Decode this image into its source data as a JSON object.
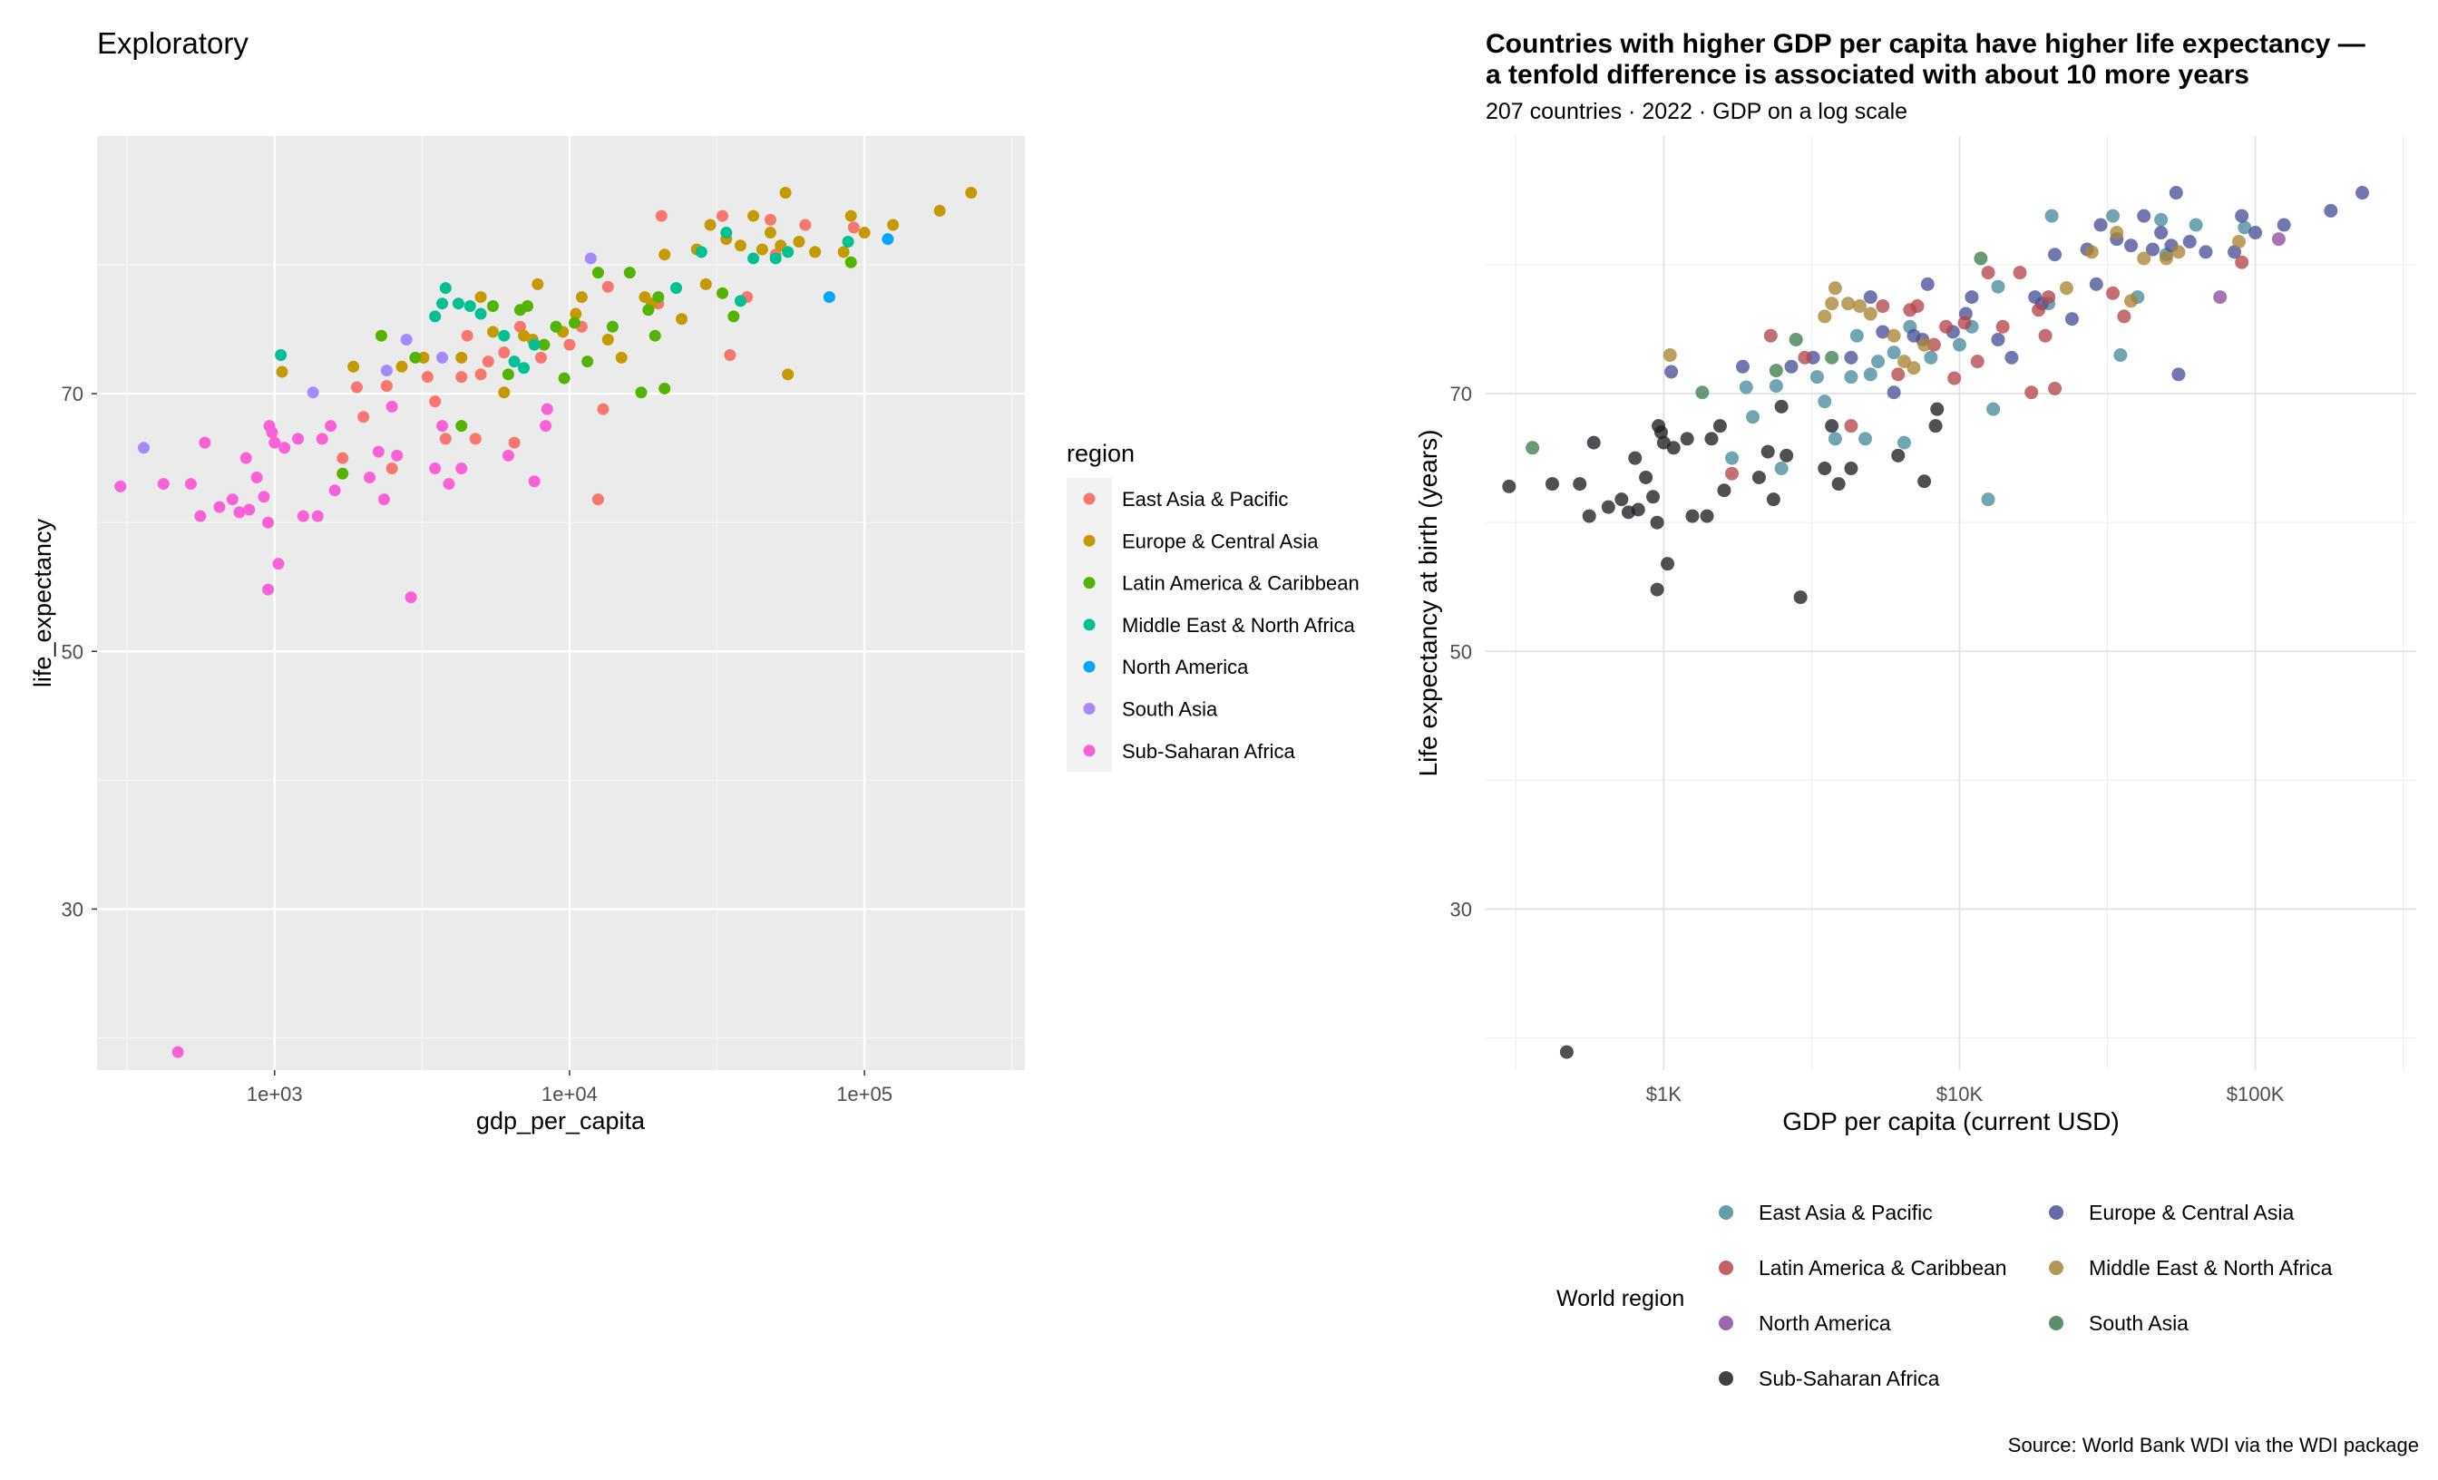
{
  "chart_data": [
    {
      "type": "scatter",
      "title": "Exploratory",
      "subtitle": "",
      "xlabel": "gdp_per_capita",
      "ylabel": "life_expectancy",
      "x_scale": "log10",
      "xlim": [
        250,
        350000
      ],
      "ylim": [
        17.5,
        90
      ],
      "x_ticks": [
        {
          "value": 1000,
          "label": "1e+03"
        },
        {
          "value": 10000,
          "label": "1e+04"
        },
        {
          "value": 100000,
          "label": "1e+05"
        }
      ],
      "y_ticks": [
        {
          "value": 30,
          "label": "30"
        },
        {
          "value": 50,
          "label": "50"
        },
        {
          "value": 70,
          "label": "70"
        }
      ],
      "grid": true,
      "legend_title": "region",
      "legend_position": "right",
      "series": [
        {
          "name": "East Asia & Pacific",
          "color": "#F8766D"
        },
        {
          "name": "Europe & Central Asia",
          "color": "#C49A00"
        },
        {
          "name": "Latin America & Caribbean",
          "color": "#53B400"
        },
        {
          "name": "Middle East & North Africa",
          "color": "#00C094"
        },
        {
          "name": "North America",
          "color": "#00A6FF"
        },
        {
          "name": "South Asia",
          "color": "#A58AFF"
        },
        {
          "name": "Sub-Saharan Africa",
          "color": "#FB61D7"
        }
      ]
    },
    {
      "type": "scatter",
      "title": "Countries with higher GDP per capita have higher life expectancy —\na tenfold difference is associated with about 10 more years",
      "subtitle": "207 countries · 2022 · GDP on a log scale",
      "xlabel": "GDP per capita (current USD)",
      "ylabel": "Life expectancy at birth (years)",
      "caption": "Source: World Bank WDI via the WDI package",
      "x_scale": "log10",
      "xlim": [
        250,
        350000
      ],
      "ylim": [
        17.5,
        90
      ],
      "x_ticks": [
        {
          "value": 1000,
          "label": "$1K"
        },
        {
          "value": 10000,
          "label": "$10K"
        },
        {
          "value": 100000,
          "label": "$100K"
        }
      ],
      "y_ticks": [
        {
          "value": 30,
          "label": "30"
        },
        {
          "value": 50,
          "label": "50"
        },
        {
          "value": 70,
          "label": "70"
        }
      ],
      "grid": true,
      "legend_title": "World region",
      "legend_position": "bottom",
      "series": [
        {
          "name": "East Asia & Pacific",
          "color": "#4A8C9C"
        },
        {
          "name": "Europe & Central Asia",
          "color": "#4B5199"
        },
        {
          "name": "Latin America & Caribbean",
          "color": "#B5474D"
        },
        {
          "name": "Middle East & North Africa",
          "color": "#A88536"
        },
        {
          "name": "North America",
          "color": "#8E4C9C"
        },
        {
          "name": "South Asia",
          "color": "#3D7D4E"
        },
        {
          "name": "Sub-Saharan Africa",
          "color": "#1F1F24"
        }
      ]
    }
  ],
  "points": [
    {
      "region": "East Asia & Pacific",
      "x": 1700,
      "y": 65.0
    },
    {
      "region": "East Asia & Pacific",
      "x": 1900,
      "y": 70.5
    },
    {
      "region": "East Asia & Pacific",
      "x": 2000,
      "y": 68.2
    },
    {
      "region": "East Asia & Pacific",
      "x": 2400,
      "y": 70.6
    },
    {
      "region": "East Asia & Pacific",
      "x": 2500,
      "y": 64.2
    },
    {
      "region": "East Asia & Pacific",
      "x": 3300,
      "y": 71.3
    },
    {
      "region": "East Asia & Pacific",
      "x": 3500,
      "y": 69.4
    },
    {
      "region": "East Asia & Pacific",
      "x": 3800,
      "y": 66.5
    },
    {
      "region": "East Asia & Pacific",
      "x": 4300,
      "y": 71.3
    },
    {
      "region": "East Asia & Pacific",
      "x": 4500,
      "y": 74.5
    },
    {
      "region": "East Asia & Pacific",
      "x": 4800,
      "y": 66.5
    },
    {
      "region": "East Asia & Pacific",
      "x": 5000,
      "y": 71.5
    },
    {
      "region": "East Asia & Pacific",
      "x": 5300,
      "y": 72.5
    },
    {
      "region": "East Asia & Pacific",
      "x": 6000,
      "y": 73.2
    },
    {
      "region": "East Asia & Pacific",
      "x": 6500,
      "y": 66.2
    },
    {
      "region": "East Asia & Pacific",
      "x": 6800,
      "y": 75.2
    },
    {
      "region": "East Asia & Pacific",
      "x": 8000,
      "y": 72.8
    },
    {
      "region": "East Asia & Pacific",
      "x": 10000,
      "y": 73.8
    },
    {
      "region": "East Asia & Pacific",
      "x": 11000,
      "y": 75.2
    },
    {
      "region": "East Asia & Pacific",
      "x": 12500,
      "y": 61.8
    },
    {
      "region": "East Asia & Pacific",
      "x": 13000,
      "y": 68.8
    },
    {
      "region": "East Asia & Pacific",
      "x": 13500,
      "y": 78.3
    },
    {
      "region": "East Asia & Pacific",
      "x": 20000,
      "y": 77.0
    },
    {
      "region": "East Asia & Pacific",
      "x": 20500,
      "y": 83.8
    },
    {
      "region": "East Asia & Pacific",
      "x": 33000,
      "y": 83.8
    },
    {
      "region": "East Asia & Pacific",
      "x": 35000,
      "y": 73.0
    },
    {
      "region": "East Asia & Pacific",
      "x": 40000,
      "y": 77.5
    },
    {
      "region": "East Asia & Pacific",
      "x": 48000,
      "y": 83.5
    },
    {
      "region": "East Asia & Pacific",
      "x": 50000,
      "y": 80.8
    },
    {
      "region": "East Asia & Pacific",
      "x": 63000,
      "y": 83.1
    },
    {
      "region": "East Asia & Pacific",
      "x": 92000,
      "y": 82.9
    },
    {
      "region": "Europe & Central Asia",
      "x": 1060,
      "y": 71.7
    },
    {
      "region": "Europe & Central Asia",
      "x": 1850,
      "y": 72.1
    },
    {
      "region": "Europe & Central Asia",
      "x": 2700,
      "y": 72.1
    },
    {
      "region": "Europe & Central Asia",
      "x": 3200,
      "y": 72.8
    },
    {
      "region": "Europe & Central Asia",
      "x": 4300,
      "y": 72.8
    },
    {
      "region": "Europe & Central Asia",
      "x": 5000,
      "y": 77.5
    },
    {
      "region": "Europe & Central Asia",
      "x": 5500,
      "y": 74.8
    },
    {
      "region": "Europe & Central Asia",
      "x": 6000,
      "y": 70.1
    },
    {
      "region": "Europe & Central Asia",
      "x": 7000,
      "y": 74.5
    },
    {
      "region": "Europe & Central Asia",
      "x": 7500,
      "y": 74.2
    },
    {
      "region": "Europe & Central Asia",
      "x": 7800,
      "y": 78.5
    },
    {
      "region": "Europe & Central Asia",
      "x": 9500,
      "y": 74.8
    },
    {
      "region": "Europe & Central Asia",
      "x": 10500,
      "y": 76.2
    },
    {
      "region": "Europe & Central Asia",
      "x": 11000,
      "y": 77.5
    },
    {
      "region": "Europe & Central Asia",
      "x": 13500,
      "y": 74.2
    },
    {
      "region": "Europe & Central Asia",
      "x": 15000,
      "y": 72.8
    },
    {
      "region": "Europe & Central Asia",
      "x": 18000,
      "y": 77.5
    },
    {
      "region": "Europe & Central Asia",
      "x": 19000,
      "y": 77.0
    },
    {
      "region": "Europe & Central Asia",
      "x": 21000,
      "y": 80.8
    },
    {
      "region": "Europe & Central Asia",
      "x": 24000,
      "y": 75.8
    },
    {
      "region": "Europe & Central Asia",
      "x": 27000,
      "y": 81.2
    },
    {
      "region": "Europe & Central Asia",
      "x": 29000,
      "y": 78.5
    },
    {
      "region": "Europe & Central Asia",
      "x": 30000,
      "y": 83.1
    },
    {
      "region": "Europe & Central Asia",
      "x": 34000,
      "y": 82.0
    },
    {
      "region": "Europe & Central Asia",
      "x": 38000,
      "y": 81.5
    },
    {
      "region": "Europe & Central Asia",
      "x": 42000,
      "y": 83.8
    },
    {
      "region": "Europe & Central Asia",
      "x": 45000,
      "y": 81.2
    },
    {
      "region": "Europe & Central Asia",
      "x": 48000,
      "y": 82.5
    },
    {
      "region": "Europe & Central Asia",
      "x": 52000,
      "y": 81.5
    },
    {
      "region": "Europe & Central Asia",
      "x": 54000,
      "y": 85.6
    },
    {
      "region": "Europe & Central Asia",
      "x": 55000,
      "y": 71.5
    },
    {
      "region": "Europe & Central Asia",
      "x": 60000,
      "y": 81.8
    },
    {
      "region": "Europe & Central Asia",
      "x": 68000,
      "y": 81.0
    },
    {
      "region": "Europe & Central Asia",
      "x": 85000,
      "y": 81.0
    },
    {
      "region": "Europe & Central Asia",
      "x": 90000,
      "y": 83.8
    },
    {
      "region": "Europe & Central Asia",
      "x": 100000,
      "y": 82.5
    },
    {
      "region": "Europe & Central Asia",
      "x": 125000,
      "y": 83.1
    },
    {
      "region": "Europe & Central Asia",
      "x": 180000,
      "y": 84.2
    },
    {
      "region": "Europe & Central Asia",
      "x": 230000,
      "y": 85.6
    },
    {
      "region": "Latin America & Caribbean",
      "x": 1700,
      "y": 63.8
    },
    {
      "region": "Latin America & Caribbean",
      "x": 2300,
      "y": 74.5
    },
    {
      "region": "Latin America & Caribbean",
      "x": 3000,
      "y": 72.8
    },
    {
      "region": "Latin America & Caribbean",
      "x": 4300,
      "y": 67.5
    },
    {
      "region": "Latin America & Caribbean",
      "x": 5500,
      "y": 76.8
    },
    {
      "region": "Latin America & Caribbean",
      "x": 6200,
      "y": 71.5
    },
    {
      "region": "Latin America & Caribbean",
      "x": 6800,
      "y": 76.5
    },
    {
      "region": "Latin America & Caribbean",
      "x": 7200,
      "y": 76.8
    },
    {
      "region": "Latin America & Caribbean",
      "x": 8200,
      "y": 73.8
    },
    {
      "region": "Latin America & Caribbean",
      "x": 9000,
      "y": 75.2
    },
    {
      "region": "Latin America & Caribbean",
      "x": 9600,
      "y": 71.2
    },
    {
      "region": "Latin America & Caribbean",
      "x": 10400,
      "y": 75.5
    },
    {
      "region": "Latin America & Caribbean",
      "x": 11500,
      "y": 72.5
    },
    {
      "region": "Latin America & Caribbean",
      "x": 12500,
      "y": 79.4
    },
    {
      "region": "Latin America & Caribbean",
      "x": 14000,
      "y": 75.2
    },
    {
      "region": "Latin America & Caribbean",
      "x": 16000,
      "y": 79.4
    },
    {
      "region": "Latin America & Caribbean",
      "x": 17500,
      "y": 70.1
    },
    {
      "region": "Latin America & Caribbean",
      "x": 18500,
      "y": 76.5
    },
    {
      "region": "Latin America & Caribbean",
      "x": 19500,
      "y": 74.5
    },
    {
      "region": "Latin America & Caribbean",
      "x": 20000,
      "y": 77.5
    },
    {
      "region": "Latin America & Caribbean",
      "x": 21000,
      "y": 70.4
    },
    {
      "region": "Latin America & Caribbean",
      "x": 33000,
      "y": 77.8
    },
    {
      "region": "Latin America & Caribbean",
      "x": 36000,
      "y": 76.0
    },
    {
      "region": "Latin America & Caribbean",
      "x": 90000,
      "y": 80.2
    },
    {
      "region": "Middle East & North Africa",
      "x": 1050,
      "y": 73.0
    },
    {
      "region": "Middle East & North Africa",
      "x": 3500,
      "y": 76.0
    },
    {
      "region": "Middle East & North Africa",
      "x": 3700,
      "y": 77.0
    },
    {
      "region": "Middle East & North Africa",
      "x": 3800,
      "y": 78.2
    },
    {
      "region": "Middle East & North Africa",
      "x": 4200,
      "y": 77.0
    },
    {
      "region": "Middle East & North Africa",
      "x": 4600,
      "y": 76.8
    },
    {
      "region": "Middle East & North Africa",
      "x": 5000,
      "y": 76.2
    },
    {
      "region": "Middle East & North Africa",
      "x": 6000,
      "y": 74.5
    },
    {
      "region": "Middle East & North Africa",
      "x": 6500,
      "y": 72.5
    },
    {
      "region": "Middle East & North Africa",
      "x": 7000,
      "y": 72.0
    },
    {
      "region": "Middle East & North Africa",
      "x": 7600,
      "y": 73.8
    },
    {
      "region": "Middle East & North Africa",
      "x": 23000,
      "y": 78.2
    },
    {
      "region": "Middle East & North Africa",
      "x": 28000,
      "y": 81.0
    },
    {
      "region": "Middle East & North Africa",
      "x": 34000,
      "y": 82.5
    },
    {
      "region": "Middle East & North Africa",
      "x": 38000,
      "y": 77.2
    },
    {
      "region": "Middle East & North Africa",
      "x": 42000,
      "y": 80.5
    },
    {
      "region": "Middle East & North Africa",
      "x": 50000,
      "y": 80.5
    },
    {
      "region": "Middle East & North Africa",
      "x": 55000,
      "y": 81.0
    },
    {
      "region": "Middle East & North Africa",
      "x": 88000,
      "y": 81.8
    },
    {
      "region": "North America",
      "x": 76000,
      "y": 77.5
    },
    {
      "region": "North America",
      "x": 120000,
      "y": 82.0
    },
    {
      "region": "South Asia",
      "x": 360,
      "y": 65.8
    },
    {
      "region": "South Asia",
      "x": 1350,
      "y": 70.1
    },
    {
      "region": "South Asia",
      "x": 2400,
      "y": 71.8
    },
    {
      "region": "South Asia",
      "x": 2800,
      "y": 74.2
    },
    {
      "region": "South Asia",
      "x": 3700,
      "y": 72.8
    },
    {
      "region": "South Asia",
      "x": 11800,
      "y": 80.5
    },
    {
      "region": "Sub-Saharan Africa",
      "x": 300,
      "y": 62.8
    },
    {
      "region": "Sub-Saharan Africa",
      "x": 420,
      "y": 63.0
    },
    {
      "region": "Sub-Saharan Africa",
      "x": 470,
      "y": 18.9
    },
    {
      "region": "Sub-Saharan Africa",
      "x": 520,
      "y": 63.0
    },
    {
      "region": "Sub-Saharan Africa",
      "x": 560,
      "y": 60.5
    },
    {
      "region": "Sub-Saharan Africa",
      "x": 580,
      "y": 66.2
    },
    {
      "region": "Sub-Saharan Africa",
      "x": 650,
      "y": 61.2
    },
    {
      "region": "Sub-Saharan Africa",
      "x": 720,
      "y": 61.8
    },
    {
      "region": "Sub-Saharan Africa",
      "x": 760,
      "y": 60.8
    },
    {
      "region": "Sub-Saharan Africa",
      "x": 800,
      "y": 65.0
    },
    {
      "region": "Sub-Saharan Africa",
      "x": 820,
      "y": 61.0
    },
    {
      "region": "Sub-Saharan Africa",
      "x": 870,
      "y": 63.5
    },
    {
      "region": "Sub-Saharan Africa",
      "x": 920,
      "y": 62.0
    },
    {
      "region": "Sub-Saharan Africa",
      "x": 950,
      "y": 60.0
    },
    {
      "region": "Sub-Saharan Africa",
      "x": 950,
      "y": 54.8
    },
    {
      "region": "Sub-Saharan Africa",
      "x": 960,
      "y": 67.5
    },
    {
      "region": "Sub-Saharan Africa",
      "x": 980,
      "y": 67.0
    },
    {
      "region": "Sub-Saharan Africa",
      "x": 1000,
      "y": 66.2
    },
    {
      "region": "Sub-Saharan Africa",
      "x": 1030,
      "y": 56.8
    },
    {
      "region": "Sub-Saharan Africa",
      "x": 1080,
      "y": 65.8
    },
    {
      "region": "Sub-Saharan Africa",
      "x": 1200,
      "y": 66.5
    },
    {
      "region": "Sub-Saharan Africa",
      "x": 1250,
      "y": 60.5
    },
    {
      "region": "Sub-Saharan Africa",
      "x": 1400,
      "y": 60.5
    },
    {
      "region": "Sub-Saharan Africa",
      "x": 1450,
      "y": 66.5
    },
    {
      "region": "Sub-Saharan Africa",
      "x": 1550,
      "y": 67.5
    },
    {
      "region": "Sub-Saharan Africa",
      "x": 1600,
      "y": 62.5
    },
    {
      "region": "Sub-Saharan Africa",
      "x": 2100,
      "y": 63.5
    },
    {
      "region": "Sub-Saharan Africa",
      "x": 2250,
      "y": 65.5
    },
    {
      "region": "Sub-Saharan Africa",
      "x": 2350,
      "y": 61.8
    },
    {
      "region": "Sub-Saharan Africa",
      "x": 2500,
      "y": 69.0
    },
    {
      "region": "Sub-Saharan Africa",
      "x": 2600,
      "y": 65.2
    },
    {
      "region": "Sub-Saharan Africa",
      "x": 2900,
      "y": 54.2
    },
    {
      "region": "Sub-Saharan Africa",
      "x": 3500,
      "y": 64.2
    },
    {
      "region": "Sub-Saharan Africa",
      "x": 3700,
      "y": 67.5
    },
    {
      "region": "Sub-Saharan Africa",
      "x": 3900,
      "y": 63.0
    },
    {
      "region": "Sub-Saharan Africa",
      "x": 4300,
      "y": 64.2
    },
    {
      "region": "Sub-Saharan Africa",
      "x": 6200,
      "y": 65.2
    },
    {
      "region": "Sub-Saharan Africa",
      "x": 7600,
      "y": 63.2
    },
    {
      "region": "Sub-Saharan Africa",
      "x": 8300,
      "y": 67.5
    },
    {
      "region": "Sub-Saharan Africa",
      "x": 8400,
      "y": 68.8
    }
  ]
}
